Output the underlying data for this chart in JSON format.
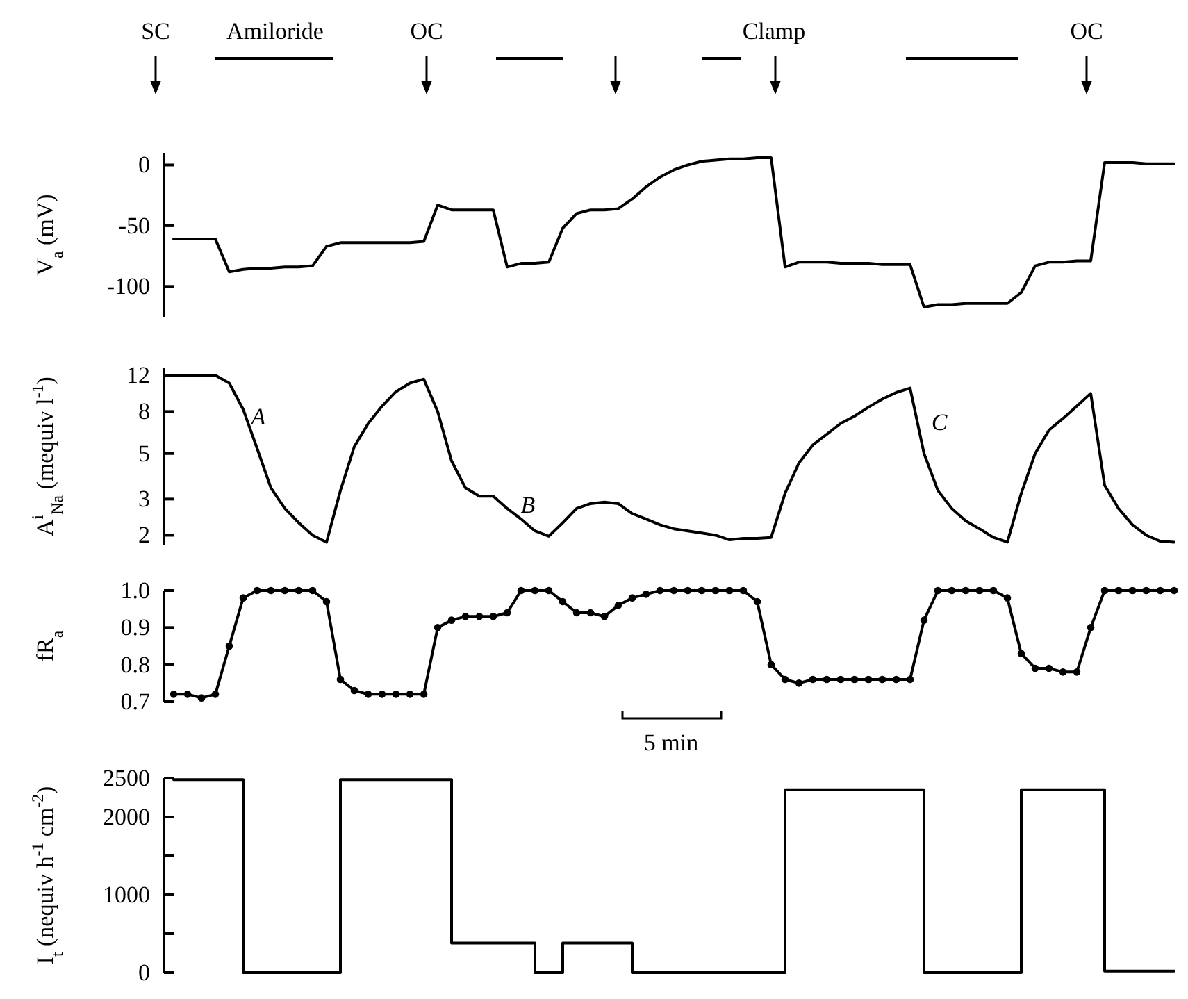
{
  "chart_data": [
    {
      "type": "line",
      "ylabel": "V$_{a}$ (mV)",
      "annotations": [
        "SC",
        "Amiloride",
        "OC",
        "Clamp",
        "OC"
      ],
      "tick_labels": "y",
      "categories": [
        null,
        null,
        null,
        null,
        null,
        null,
        null,
        null,
        null,
        null,
        null,
        null,
        null,
        null,
        null,
        null,
        null,
        null,
        null,
        null,
        null,
        null,
        null,
        null,
        null,
        null,
        null,
        null,
        null,
        null,
        null,
        null,
        null,
        null,
        null,
        null,
        null,
        null,
        null,
        null,
        null,
        null,
        null,
        null,
        null,
        null,
        null,
        null,
        null,
        null,
        null,
        null,
        null,
        null,
        null,
        null,
        null,
        null,
        null,
        null,
        null,
        null,
        null,
        null,
        null,
        null,
        null,
        null,
        null,
        null,
        null,
        null,
        null
      ],
      "series": [
        {
          "color": "#000000",
          "values": [
            -61,
            -61,
            -61,
            -61,
            -88,
            -86,
            -85,
            -85,
            -84,
            -84,
            -83,
            -67,
            -64,
            -64,
            -64,
            -64,
            -64,
            -64,
            -63,
            -33,
            -37,
            -37,
            -37,
            -37,
            -84,
            -81,
            -81,
            -80,
            -52,
            -40,
            -37,
            -37,
            -36,
            -28,
            -18,
            -10,
            -4,
            0,
            3,
            4,
            5,
            5,
            6,
            6,
            -84,
            -80,
            -80,
            -80,
            -81,
            -81,
            -81,
            -82,
            -82,
            -82,
            -117,
            -115,
            -115,
            -114,
            -114,
            -114,
            -114,
            -105,
            -83,
            -80,
            -80,
            -79,
            -79,
            2,
            2,
            2,
            1,
            1,
            1
          ]
        }
      ],
      "ylim": [
        -125,
        10
      ],
      "yticks": [
        0,
        -50,
        -100
      ]
    },
    {
      "type": "line",
      "ylabel": "A$^{i}$$_{Na}$ (mequiv l$^{-1}$)",
      "annotations": [
        "A",
        "B",
        "C"
      ],
      "tick_labels": "y",
      "log": true,
      "categories": [
        null,
        null,
        null,
        null,
        null,
        null,
        null,
        null,
        null,
        null,
        null,
        null,
        null,
        null,
        null,
        null,
        null,
        null,
        null,
        null,
        null,
        null,
        null,
        null,
        null,
        null,
        null,
        null,
        null,
        null,
        null,
        null,
        null,
        null,
        null,
        null,
        null,
        null,
        null,
        null,
        null,
        null,
        null,
        null,
        null,
        null,
        null,
        null,
        null,
        null,
        null,
        null,
        null,
        null,
        null,
        null,
        null,
        null,
        null,
        null,
        null,
        null,
        null,
        null,
        null,
        null,
        null,
        null,
        null,
        null,
        null,
        null,
        null
      ],
      "series": [
        {
          "color": "#000000",
          "values": [
            12,
            12,
            12,
            12,
            11,
            8.2,
            5.3,
            3.4,
            2.7,
            2.3,
            2.0,
            1.85,
            3.3,
            5.4,
            7,
            8.5,
            10,
            11,
            11.5,
            8,
            4.6,
            3.4,
            3.1,
            3.1,
            2.7,
            2.4,
            2.1,
            1.98,
            2.3,
            2.7,
            2.85,
            2.9,
            2.85,
            2.55,
            2.4,
            2.25,
            2.15,
            2.1,
            2.05,
            2.0,
            1.9,
            1.93,
            1.93,
            1.95,
            3.2,
            4.5,
            5.5,
            6.2,
            7,
            7.6,
            8.4,
            9.2,
            9.9,
            10.4,
            5,
            3.3,
            2.7,
            2.35,
            2.15,
            1.95,
            1.85,
            3.2,
            5,
            6.5,
            7.4,
            8.5,
            9.8,
            3.5,
            2.7,
            2.25,
            2.0,
            1.87,
            1.85
          ]
        }
      ],
      "ylim": [
        1.8,
        13
      ],
      "yticks": [
        2,
        3,
        5,
        8,
        12
      ]
    },
    {
      "type": "line",
      "ylabel": "fR$_{a}$",
      "annotations": [
        "5 min"
      ],
      "tick_labels": "y",
      "marker": "circle",
      "categories": [
        null,
        null,
        null,
        null,
        null,
        null,
        null,
        null,
        null,
        null,
        null,
        null,
        null,
        null,
        null,
        null,
        null,
        null,
        null,
        null,
        null,
        null,
        null,
        null,
        null,
        null,
        null,
        null,
        null,
        null,
        null,
        null,
        null,
        null,
        null,
        null,
        null,
        null,
        null,
        null,
        null,
        null,
        null,
        null,
        null,
        null,
        null,
        null,
        null,
        null,
        null,
        null,
        null,
        null,
        null,
        null,
        null,
        null,
        null,
        null,
        null,
        null,
        null,
        null,
        null,
        null,
        null,
        null,
        null,
        null,
        null,
        null,
        null
      ],
      "series": [
        {
          "color": "#000000",
          "values": [
            0.72,
            0.72,
            0.71,
            0.72,
            0.85,
            0.98,
            1.0,
            1.0,
            1.0,
            1.0,
            1.0,
            0.97,
            0.76,
            0.73,
            0.72,
            0.72,
            0.72,
            0.72,
            0.72,
            0.9,
            0.92,
            0.93,
            0.93,
            0.93,
            0.94,
            1.0,
            1.0,
            1.0,
            0.97,
            0.94,
            0.94,
            0.93,
            0.96,
            0.98,
            0.99,
            1.0,
            1.0,
            1.0,
            1.0,
            1.0,
            1.0,
            1.0,
            0.97,
            0.8,
            0.76,
            0.75,
            0.76,
            0.76,
            0.76,
            0.76,
            0.76,
            0.76,
            0.76,
            0.76,
            0.92,
            1.0,
            1.0,
            1.0,
            1.0,
            1.0,
            0.98,
            0.83,
            0.79,
            0.79,
            0.78,
            0.78,
            0.9,
            1.0,
            1.0,
            1.0,
            1.0,
            1.0,
            1.0
          ]
        }
      ],
      "ylim": [
        0.7,
        1.0
      ],
      "yticks": [
        {
          "value": 0.7,
          "label": "0.7"
        },
        {
          "value": 0.8,
          "label": "0.8"
        },
        {
          "value": 0.9,
          "label": "0.9"
        },
        {
          "value": 1.0,
          "label": "1.0"
        }
      ]
    },
    {
      "type": "step",
      "ylabel": "I$_{t}$ (nequiv h$^{-1}$ cm$^{-2}$)",
      "tick_labels": "y",
      "categories": [
        null,
        null,
        null,
        null,
        null,
        null,
        null,
        null,
        null,
        null,
        null,
        null,
        null,
        null,
        null,
        null,
        null,
        null,
        null,
        null,
        null,
        null,
        null,
        null,
        null,
        null,
        null,
        null,
        null,
        null,
        null,
        null,
        null,
        null,
        null,
        null,
        null,
        null,
        null,
        null,
        null,
        null,
        null,
        null,
        null,
        null,
        null,
        null,
        null,
        null,
        null,
        null,
        null,
        null,
        null,
        null,
        null,
        null,
        null,
        null,
        null,
        null,
        null,
        null,
        null,
        null,
        null,
        null,
        null,
        null,
        null,
        null,
        null
      ],
      "series": [
        {
          "color": "#000000",
          "values": [
            2480,
            2480,
            2480,
            2480,
            2480,
            0,
            0,
            0,
            0,
            0,
            0,
            0,
            2480,
            2480,
            2480,
            2480,
            2480,
            2480,
            2480,
            2480,
            380,
            380,
            380,
            380,
            380,
            380,
            0,
            0,
            380,
            380,
            380,
            380,
            380,
            0,
            0,
            0,
            0,
            0,
            0,
            0,
            0,
            0,
            0,
            0,
            2350,
            2350,
            2350,
            2350,
            2350,
            2350,
            2350,
            2350,
            2350,
            2350,
            0,
            0,
            0,
            0,
            0,
            0,
            0,
            2350,
            2350,
            2350,
            2350,
            2350,
            2350,
            20,
            20,
            20,
            20,
            20,
            20
          ]
        }
      ],
      "ylim": [
        0,
        2500
      ],
      "yticks": [
        0,
        {
          "value": 500,
          "label": null
        },
        1000,
        {
          "value": 1500,
          "label": null
        },
        2000,
        2500
      ]
    }
  ]
}
